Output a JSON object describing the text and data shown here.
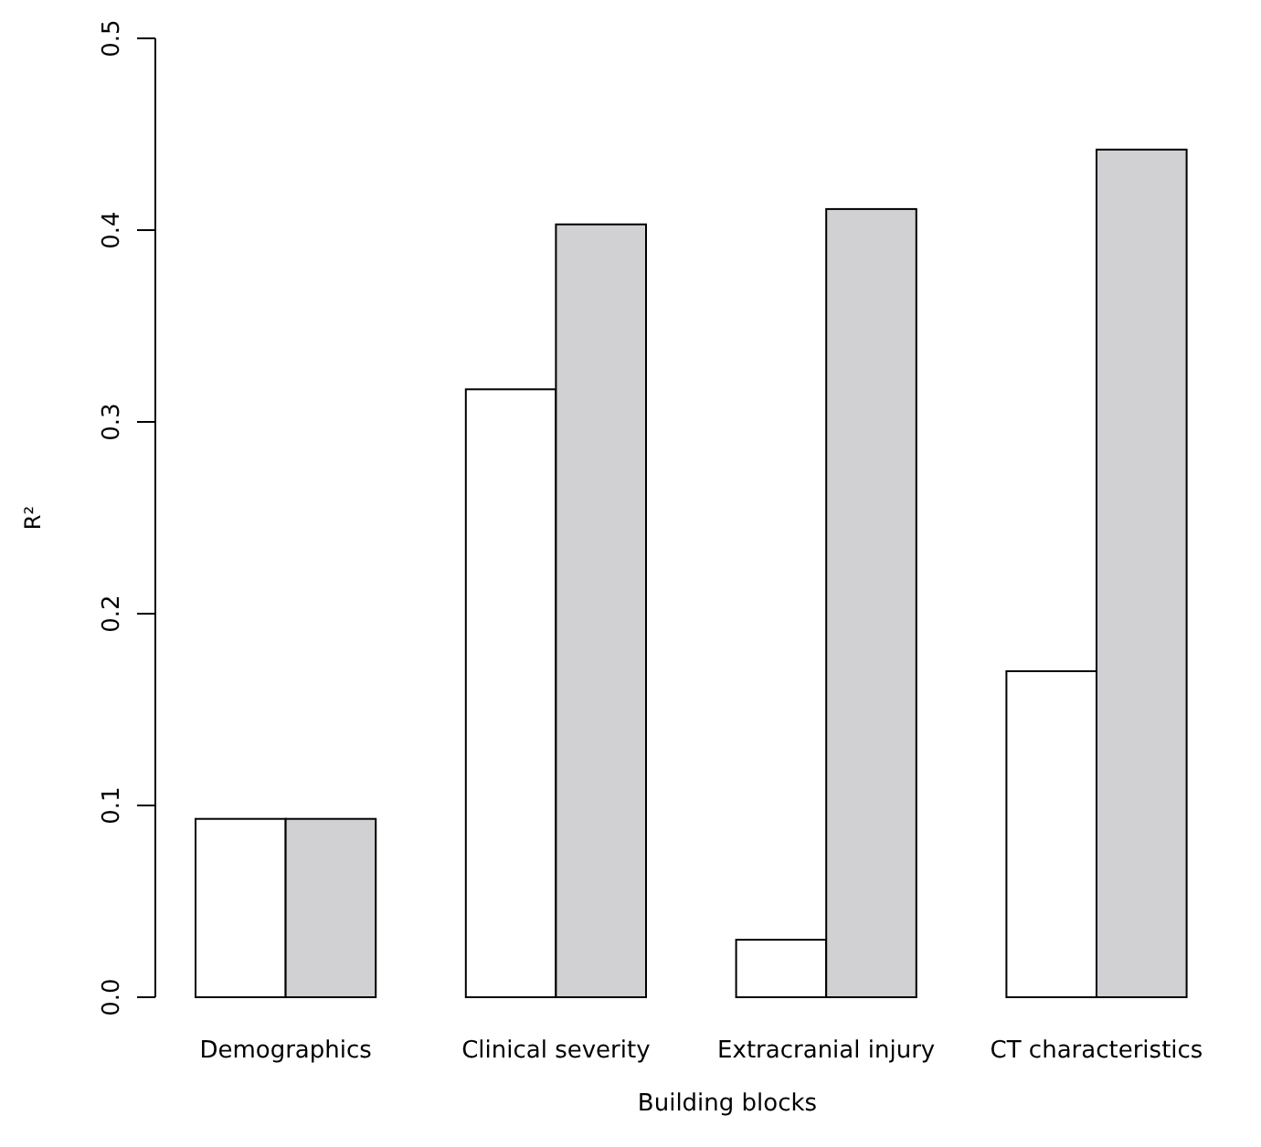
{
  "chart_data": {
    "type": "bar",
    "xlabel": "Building blocks",
    "ylabel": "R²",
    "categories": [
      "Demographics",
      "Clinical severity",
      "Extracranial injury",
      "CT characteristics"
    ],
    "series": [
      {
        "color": "#ffffff",
        "values": [
          0.093,
          0.317,
          0.03,
          0.17
        ]
      },
      {
        "color": "#d1d1d4",
        "values": [
          0.093,
          0.403,
          0.411,
          0.442
        ]
      }
    ],
    "ylim": [
      0,
      0.5
    ],
    "yticks": [
      {
        "value": 0,
        "label": "0.0"
      },
      {
        "value": 0.1,
        "label": "0.1"
      },
      {
        "value": 0.2,
        "label": "0.2"
      },
      {
        "value": 0.3,
        "label": "0.3"
      },
      {
        "value": 0.4,
        "label": "0.4"
      },
      {
        "value": 0.5,
        "label": "0.5"
      }
    ],
    "grid": false
  }
}
